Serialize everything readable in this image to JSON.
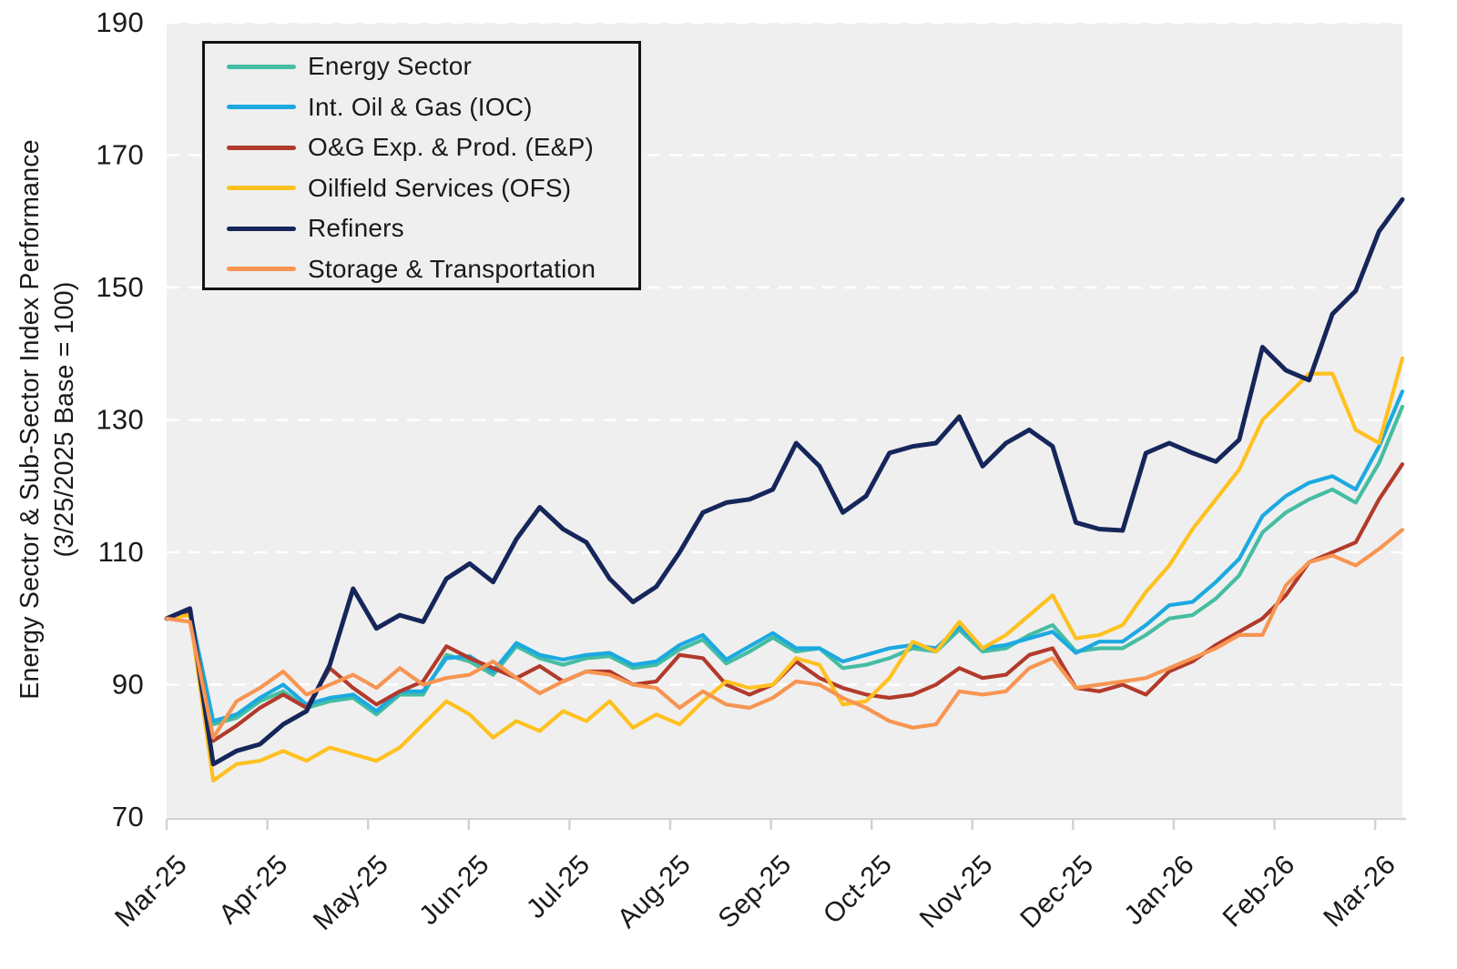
{
  "chart_data": {
    "type": "line",
    "title": "",
    "ylabel_line1": "Energy Sector & Sub-Sector Index Performance",
    "ylabel_line2": "(3/25/2025 Base = 100)",
    "ylim": [
      70,
      190
    ],
    "y_ticks": [
      70,
      90,
      110,
      130,
      150,
      170,
      190
    ],
    "x_tick_labels": [
      "Mar-25",
      "Apr-25",
      "May-25",
      "Jun-25",
      "Jul-25",
      "Aug-25",
      "Sep-25",
      "Oct-25",
      "Nov-25",
      "Dec-25",
      "Jan-26",
      "Feb-26",
      "Mar-26"
    ],
    "x_months_span": 12.27,
    "grid": "horizontal white dashed lines on gray plot background",
    "legend_position": "top-left inside plot",
    "sampling": "weekly",
    "series": [
      {
        "name": "Energy Sector",
        "color": "#45BDA2",
        "values": [
          100,
          100.8,
          84,
          85,
          87.5,
          89,
          86.5,
          87.5,
          88,
          85.5,
          88.5,
          88.5,
          94.5,
          93.5,
          91.5,
          95.8,
          94,
          93,
          94,
          94.3,
          92.5,
          93,
          95.3,
          96.8,
          93.2,
          95,
          97.1,
          95,
          95.5,
          92.5,
          93,
          94,
          95.5,
          95,
          98.3,
          95,
          95.5,
          97.5,
          99,
          95,
          95.5,
          95.5,
          97.5,
          100,
          100.5,
          103,
          106.5,
          113,
          116,
          118,
          119.5,
          117.5,
          123.5,
          132
        ]
      },
      {
        "name": "Int. Oil & Gas (IOC)",
        "color": "#1CA9E1",
        "values": [
          100,
          101.2,
          84.5,
          85.5,
          88,
          90,
          87,
          88,
          88.5,
          86,
          89,
          89,
          94,
          94.3,
          92,
          96.3,
          94.5,
          93.8,
          94.5,
          94.8,
          93,
          93.5,
          96,
          97.5,
          93.8,
          95.8,
          97.8,
          95.5,
          95.5,
          93.5,
          94.5,
          95.5,
          96,
          95.5,
          98.8,
          95.5,
          96,
          97,
          98,
          94.8,
          96.5,
          96.5,
          99,
          102,
          102.5,
          105.5,
          109,
          115.5,
          118.5,
          120.5,
          121.5,
          119.5,
          126,
          134.3
        ]
      },
      {
        "name": "O&G Exp. & Prod. (E&P)",
        "color": "#B23A2B",
        "values": [
          100,
          100.8,
          81.5,
          83.8,
          86.5,
          88.5,
          86.5,
          92.5,
          89.5,
          87,
          89,
          90.5,
          95.8,
          94,
          92.5,
          91,
          92.8,
          90.5,
          92,
          92,
          90,
          90.5,
          94.5,
          94,
          90,
          88.5,
          90,
          93.5,
          91,
          89.5,
          88.5,
          88,
          88.5,
          90,
          92.5,
          91,
          91.5,
          94.5,
          95.5,
          89.5,
          89,
          90,
          88.5,
          92,
          93.5,
          96,
          98,
          100,
          103.5,
          108.5,
          110,
          111.5,
          118,
          123.3
        ]
      },
      {
        "name": "Oilfield Services (OFS)",
        "color": "#FFC120",
        "values": [
          100,
          100.5,
          75.5,
          78,
          78.5,
          80,
          78.5,
          80.5,
          79.5,
          78.5,
          80.5,
          84,
          87.5,
          85.5,
          82,
          84.5,
          83,
          86,
          84.5,
          87.5,
          83.5,
          85.5,
          84,
          87.5,
          90.5,
          89.5,
          90,
          94,
          93,
          87,
          87.5,
          91,
          96.5,
          95,
          99.5,
          95.5,
          97.5,
          100.5,
          103.5,
          97,
          97.5,
          99,
          104,
          108,
          113.5,
          118,
          122.5,
          130,
          133.5,
          137,
          137,
          128.5,
          126.5,
          139.3
        ]
      },
      {
        "name": "Refiners",
        "color": "#16265B",
        "values": [
          100,
          101.5,
          78,
          80,
          81,
          84,
          86,
          93,
          104.5,
          98.5,
          100.5,
          99.5,
          106,
          108.3,
          105.5,
          112,
          116.8,
          113.5,
          111.5,
          106,
          102.5,
          104.8,
          110,
          116,
          117.5,
          118,
          119.5,
          126.5,
          123,
          116,
          118.5,
          125,
          126,
          126.5,
          130.5,
          123,
          126.5,
          128.5,
          126,
          114.5,
          113.5,
          113.3,
          125,
          126.5,
          125,
          123.7,
          127,
          141,
          137.5,
          136,
          146,
          149.5,
          158.5,
          163.3
        ]
      },
      {
        "name": "Storage & Transportation",
        "color": "#F79552",
        "values": [
          100,
          99.5,
          82,
          87.5,
          89.5,
          92,
          88.5,
          90,
          91.5,
          89.5,
          92.5,
          90,
          91,
          91.5,
          93.5,
          91,
          88.7,
          90.5,
          92,
          91.5,
          90,
          89.5,
          86.5,
          89,
          87,
          86.5,
          88,
          90.5,
          90,
          88,
          86.5,
          84.5,
          83.5,
          84,
          89,
          88.5,
          89,
          92.5,
          94,
          89.5,
          90,
          90.5,
          91,
          92.5,
          94,
          95.5,
          97.5,
          97.5,
          105,
          108.5,
          109.5,
          108,
          110.5,
          113.4
        ]
      }
    ]
  },
  "style": {
    "plot_bg": "#EFEFEF",
    "page_bg": "#FFFFFF",
    "gridline_color": "#FFFFFF",
    "axis_color": "#D2D2D2",
    "text_color": "#1A1A1A",
    "legend_border": "#141414"
  }
}
